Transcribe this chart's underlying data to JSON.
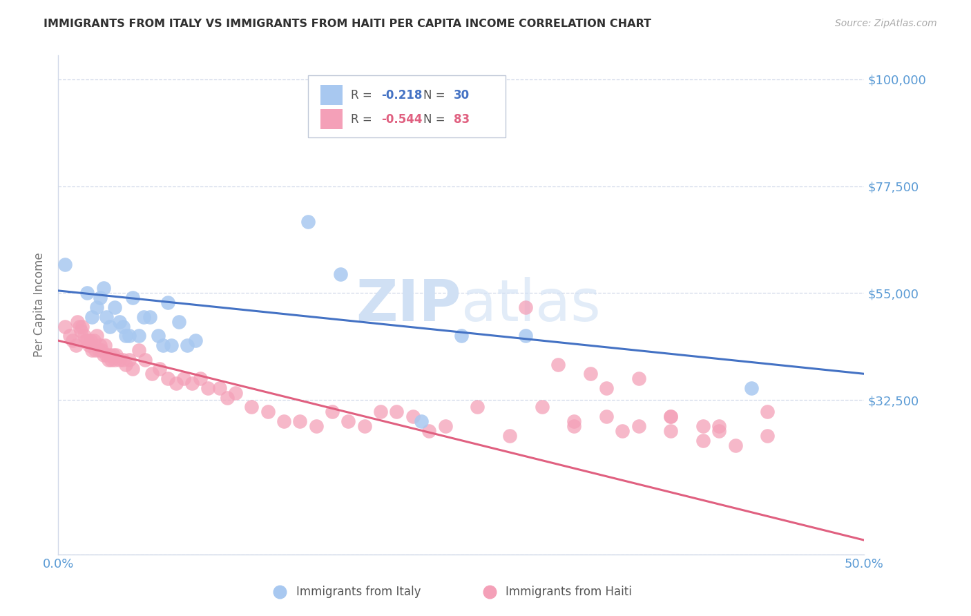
{
  "title": "IMMIGRANTS FROM ITALY VS IMMIGRANTS FROM HAITI PER CAPITA INCOME CORRELATION CHART",
  "source": "Source: ZipAtlas.com",
  "ylabel": "Per Capita Income",
  "xlim": [
    0.0,
    0.5
  ],
  "ylim": [
    0,
    105000
  ],
  "yticks": [
    0,
    32500,
    55000,
    77500,
    100000
  ],
  "ytick_labels": [
    "",
    "$32,500",
    "$55,000",
    "$77,500",
    "$100,000"
  ],
  "xticks": [
    0.0,
    0.1,
    0.2,
    0.3,
    0.4,
    0.5
  ],
  "xtick_labels": [
    "0.0%",
    "",
    "",
    "",
    "",
    "50.0%"
  ],
  "italy_R": -0.218,
  "italy_N": 30,
  "haiti_R": -0.544,
  "haiti_N": 83,
  "italy_color": "#a8c8f0",
  "haiti_color": "#f4a0b8",
  "italy_line_color": "#4472c4",
  "haiti_line_color": "#e06080",
  "grid_color": "#d0d8e8",
  "title_color": "#303030",
  "ylabel_color": "#777777",
  "axis_label_color": "#5b9bd5",
  "watermark_color": "#d0e0f4",
  "background_color": "#ffffff",
  "italy_x": [
    0.004,
    0.018,
    0.021,
    0.024,
    0.026,
    0.028,
    0.03,
    0.032,
    0.035,
    0.038,
    0.04,
    0.042,
    0.044,
    0.046,
    0.05,
    0.053,
    0.057,
    0.062,
    0.065,
    0.068,
    0.07,
    0.075,
    0.08,
    0.085,
    0.155,
    0.175,
    0.225,
    0.25,
    0.29,
    0.43
  ],
  "italy_y": [
    61000,
    55000,
    50000,
    52000,
    54000,
    56000,
    50000,
    48000,
    52000,
    49000,
    48000,
    46000,
    46000,
    54000,
    46000,
    50000,
    50000,
    46000,
    44000,
    53000,
    44000,
    49000,
    44000,
    45000,
    70000,
    59000,
    28000,
    46000,
    46000,
    35000
  ],
  "haiti_x": [
    0.004,
    0.007,
    0.009,
    0.011,
    0.012,
    0.013,
    0.014,
    0.015,
    0.016,
    0.017,
    0.018,
    0.019,
    0.02,
    0.021,
    0.022,
    0.023,
    0.024,
    0.025,
    0.026,
    0.027,
    0.028,
    0.029,
    0.03,
    0.031,
    0.032,
    0.033,
    0.034,
    0.035,
    0.036,
    0.038,
    0.04,
    0.042,
    0.044,
    0.046,
    0.05,
    0.054,
    0.058,
    0.063,
    0.068,
    0.073,
    0.078,
    0.083,
    0.088,
    0.093,
    0.1,
    0.105,
    0.11,
    0.12,
    0.13,
    0.14,
    0.15,
    0.16,
    0.17,
    0.18,
    0.19,
    0.2,
    0.21,
    0.22,
    0.23,
    0.24,
    0.26,
    0.28,
    0.3,
    0.32,
    0.34,
    0.36,
    0.38,
    0.4,
    0.42,
    0.44,
    0.32,
    0.35,
    0.38,
    0.4,
    0.41,
    0.34,
    0.36,
    0.38,
    0.41,
    0.44,
    0.29,
    0.31,
    0.33
  ],
  "haiti_y": [
    48000,
    46000,
    45000,
    44000,
    49000,
    48000,
    47000,
    48000,
    46000,
    45000,
    45000,
    44000,
    45000,
    43000,
    45000,
    43000,
    46000,
    43000,
    44000,
    43000,
    42000,
    44000,
    42000,
    41000,
    42000,
    41000,
    42000,
    41000,
    42000,
    41000,
    41000,
    40000,
    41000,
    39000,
    43000,
    41000,
    38000,
    39000,
    37000,
    36000,
    37000,
    36000,
    37000,
    35000,
    35000,
    33000,
    34000,
    31000,
    30000,
    28000,
    28000,
    27000,
    30000,
    28000,
    27000,
    30000,
    30000,
    29000,
    26000,
    27000,
    31000,
    25000,
    31000,
    27000,
    29000,
    27000,
    26000,
    24000,
    23000,
    30000,
    28000,
    26000,
    29000,
    27000,
    26000,
    35000,
    37000,
    29000,
    27000,
    25000,
    52000,
    40000,
    38000
  ],
  "italy_line_x": [
    0.0,
    0.5
  ],
  "italy_line_y": [
    55500,
    38000
  ],
  "haiti_line_x": [
    0.0,
    0.5
  ],
  "haiti_line_y": [
    45000,
    3000
  ]
}
